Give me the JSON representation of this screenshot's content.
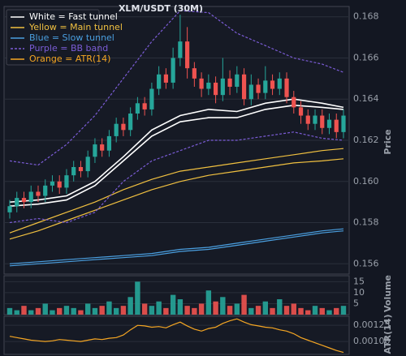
{
  "chart_data": [
    {
      "type": "candlestick",
      "title": "XLM/USDT (30M)",
      "ylabel": "Price",
      "up_color": "#26a69a",
      "down_color": "#ef5350",
      "open": [
        0.1585,
        0.1588,
        0.1592,
        0.159,
        0.1595,
        0.1593,
        0.1598,
        0.16,
        0.1597,
        0.1603,
        0.1607,
        0.1605,
        0.1612,
        0.1618,
        0.1615,
        0.1622,
        0.1628,
        0.1625,
        0.1633,
        0.1638,
        0.1635,
        0.1645,
        0.1652,
        0.1648,
        0.166,
        0.1668,
        0.1655,
        0.165,
        0.1645,
        0.1648,
        0.1642,
        0.165,
        0.1646,
        0.1652,
        0.164,
        0.1647,
        0.1643,
        0.1649,
        0.1645,
        0.165,
        0.1641,
        0.1636,
        0.1632,
        0.1628,
        0.1632,
        0.1626,
        0.163,
        0.1624
      ],
      "high": [
        0.1591,
        0.1595,
        0.1595,
        0.1598,
        0.1598,
        0.1601,
        0.1603,
        0.1603,
        0.1606,
        0.161,
        0.161,
        0.1615,
        0.1621,
        0.1621,
        0.1625,
        0.1631,
        0.1631,
        0.1636,
        0.1641,
        0.1641,
        0.1648,
        0.1656,
        0.1655,
        0.1665,
        0.1681,
        0.1675,
        0.1658,
        0.1653,
        0.1652,
        0.1651,
        0.166,
        0.1654,
        0.1656,
        0.1655,
        0.1652,
        0.165,
        0.1656,
        0.1652,
        0.1653,
        0.1653,
        0.1644,
        0.1639,
        0.1635,
        0.1635,
        0.1635,
        0.1633,
        0.1633,
        0.1635
      ],
      "low": [
        0.1582,
        0.1585,
        0.1587,
        0.1587,
        0.159,
        0.159,
        0.1595,
        0.1594,
        0.1594,
        0.16,
        0.1602,
        0.1602,
        0.1609,
        0.1612,
        0.1612,
        0.1619,
        0.1622,
        0.1622,
        0.163,
        0.1632,
        0.1632,
        0.1642,
        0.1645,
        0.1645,
        0.1656,
        0.165,
        0.1646,
        0.1641,
        0.1642,
        0.1638,
        0.1639,
        0.1642,
        0.1643,
        0.1637,
        0.1637,
        0.164,
        0.164,
        0.1642,
        0.1642,
        0.1638,
        0.1633,
        0.1628,
        0.1625,
        0.1625,
        0.1623,
        0.1623,
        0.1621,
        0.1621
      ],
      "close": [
        0.1588,
        0.1592,
        0.159,
        0.1595,
        0.1593,
        0.1598,
        0.16,
        0.1597,
        0.1603,
        0.1607,
        0.1605,
        0.1612,
        0.1618,
        0.1615,
        0.1622,
        0.1628,
        0.1625,
        0.1633,
        0.1638,
        0.1635,
        0.1645,
        0.1652,
        0.1648,
        0.166,
        0.1668,
        0.1655,
        0.165,
        0.1645,
        0.1648,
        0.1642,
        0.165,
        0.1646,
        0.1652,
        0.164,
        0.1647,
        0.1643,
        0.1649,
        0.1645,
        0.165,
        0.1641,
        0.1636,
        0.1632,
        0.1628,
        0.1632,
        0.1626,
        0.163,
        0.1624,
        0.1632
      ],
      "series": [
        {
          "name": "White = Fast tunnel",
          "color": "#ffffff",
          "x": [
            0,
            4,
            8,
            12,
            16,
            20,
            24,
            28,
            32,
            36,
            40,
            44,
            47
          ],
          "upper": [
            0.159,
            0.1591,
            0.1593,
            0.16,
            0.1612,
            0.1625,
            0.1632,
            0.1635,
            0.1634,
            0.1638,
            0.164,
            0.1638,
            0.1636
          ],
          "lower": [
            0.1588,
            0.1589,
            0.1591,
            0.1598,
            0.161,
            0.1622,
            0.1629,
            0.1631,
            0.1631,
            0.1635,
            0.1637,
            0.1636,
            0.1635
          ]
        },
        {
          "name": "Yellow = Main tunnel",
          "color": "#f0c040",
          "x": [
            0,
            4,
            8,
            12,
            16,
            20,
            24,
            28,
            32,
            36,
            40,
            44,
            47
          ],
          "upper": [
            0.1575,
            0.158,
            0.1585,
            0.159,
            0.1596,
            0.1601,
            0.1605,
            0.1607,
            0.1609,
            0.1611,
            0.1613,
            0.1615,
            0.1616
          ],
          "lower": [
            0.1572,
            0.1576,
            0.1581,
            0.1586,
            0.1591,
            0.1596,
            0.16,
            0.1603,
            0.1605,
            0.1607,
            0.1609,
            0.161,
            0.1611
          ]
        },
        {
          "name": "Blue = Slow tunnel",
          "color": "#4a9fe0",
          "x": [
            0,
            4,
            8,
            12,
            16,
            20,
            24,
            28,
            32,
            36,
            40,
            44,
            47
          ],
          "upper": [
            0.156,
            0.1561,
            0.1562,
            0.1563,
            0.1564,
            0.1565,
            0.1567,
            0.1568,
            0.157,
            0.1572,
            0.1574,
            0.1576,
            0.1577
          ],
          "lower": [
            0.1559,
            0.156,
            0.1561,
            0.1562,
            0.1563,
            0.1564,
            0.1566,
            0.1567,
            0.1569,
            0.1571,
            0.1573,
            0.1575,
            0.1576
          ]
        },
        {
          "name": "Purple = BB band",
          "color": "#7b5cd6",
          "dashed": true,
          "x": [
            0,
            4,
            8,
            12,
            16,
            20,
            24,
            28,
            32,
            36,
            40,
            44,
            47
          ],
          "upper": [
            0.161,
            0.1608,
            0.1618,
            0.1632,
            0.165,
            0.1668,
            0.1683,
            0.1682,
            0.1672,
            0.1666,
            0.166,
            0.1657,
            0.1653
          ],
          "lower": [
            0.158,
            0.1582,
            0.158,
            0.1585,
            0.16,
            0.161,
            0.1615,
            0.162,
            0.162,
            0.1622,
            0.1624,
            0.1621,
            0.162
          ]
        }
      ],
      "ylim": [
        0.1555,
        0.1685
      ],
      "yticks": [
        0.156,
        0.158,
        {
          "value": 0.16,
          "label": "0.160"
        },
        0.162,
        0.164,
        0.166,
        0.168
      ],
      "grid": true
    },
    {
      "type": "bar",
      "ylabel": "Volume",
      "values": [
        3,
        2,
        4,
        2,
        3,
        5,
        2,
        3,
        4,
        3,
        2,
        5,
        3,
        4,
        6,
        3,
        4,
        8,
        15,
        5,
        4,
        6,
        3,
        9,
        7,
        4,
        3,
        5,
        11,
        6,
        8,
        4,
        5,
        9,
        3,
        4,
        6,
        3,
        7,
        4,
        5,
        3,
        2,
        4,
        3,
        2,
        3,
        4
      ],
      "ylim": [
        0,
        17.7
      ],
      "yticks": [
        5,
        10,
        15
      ],
      "grid": true
    },
    {
      "type": "line",
      "ylabel": "ATR(14)",
      "series": [
        {
          "name": "Orange = ATR(14)",
          "color": "#f5a623",
          "values": [
            0.00108,
            0.00106,
            0.00104,
            0.00102,
            0.00101,
            0.001,
            0.00101,
            0.00103,
            0.00102,
            0.00101,
            0.001,
            0.00102,
            0.00104,
            0.00103,
            0.00105,
            0.00106,
            0.0011,
            0.00118,
            0.00125,
            0.00124,
            0.00122,
            0.00123,
            0.00121,
            0.00126,
            0.0013,
            0.00124,
            0.00119,
            0.00116,
            0.0012,
            0.00122,
            0.00128,
            0.00132,
            0.00135,
            0.0013,
            0.00126,
            0.00124,
            0.00122,
            0.00121,
            0.00118,
            0.00116,
            0.00112,
            0.00106,
            0.00102,
            0.00098,
            0.00094,
            0.0009,
            0.00086,
            0.00083
          ]
        }
      ],
      "ylim": [
        0.0008,
        0.00139
      ],
      "yticks": [
        {
          "value": 0.001,
          "label": "0.00100"
        },
        {
          "value": 0.00125,
          "label": "0.00125"
        }
      ],
      "grid": true
    }
  ]
}
